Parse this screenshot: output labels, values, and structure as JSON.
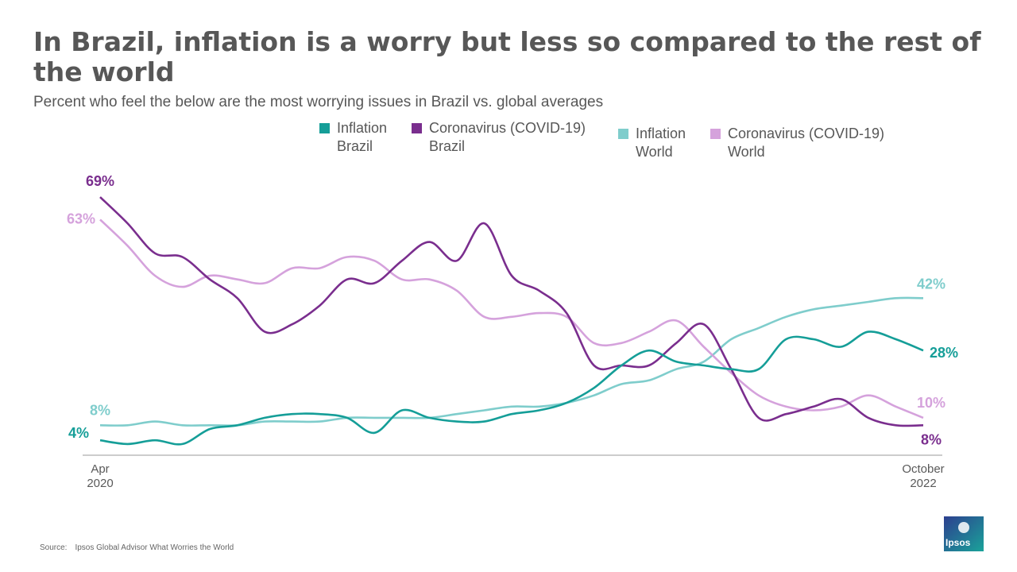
{
  "header": {
    "title": "In Brazil, inflation is a worry but less so compared to the rest of the world",
    "subtitle": "Percent who feel the below are the most worrying issues in Brazil vs. global averages"
  },
  "legend": [
    {
      "label": "Inflation\nBrazil",
      "color": "#159E98"
    },
    {
      "label": "Coronavirus (COVID-19)\nBrazil",
      "color": "#7A2E8E"
    },
    {
      "label": "Inflation\nWorld",
      "color": "#7FCDCC"
    },
    {
      "label": "Coronavirus (COVID-19)\nWorld",
      "color": "#D5A2DC"
    }
  ],
  "chart_data": {
    "type": "line",
    "title": "In Brazil, inflation is a worry but less so compared to the rest of the world",
    "subtitle": "Percent who feel the below are the most worrying issues in Brazil vs. global averages",
    "x_start_label": "Apr\n2020",
    "x_end_label": "October\n2022",
    "n_points": 31,
    "ylim": [
      0,
      72
    ],
    "grid": false,
    "series": [
      {
        "name": "Inflation Brazil",
        "color": "#159E98",
        "start_label": "4%",
        "end_label": "28%",
        "values": [
          4,
          3,
          4,
          3,
          7,
          8,
          10,
          11,
          11,
          10,
          6,
          12,
          10,
          9,
          9,
          11,
          12,
          14,
          18,
          24,
          28,
          25,
          24,
          23,
          23,
          31,
          31,
          29,
          33,
          31,
          28
        ]
      },
      {
        "name": "Coronavirus (COVID-19) Brazil",
        "color": "#7A2E8E",
        "start_label": "69%",
        "end_label": "8%",
        "values": [
          69,
          62,
          54,
          53,
          47,
          42,
          33,
          35,
          40,
          47,
          46,
          52,
          57,
          52,
          62,
          48,
          44,
          38,
          24,
          24,
          24,
          30,
          35,
          23,
          10,
          11,
          13,
          15,
          10,
          8,
          8
        ]
      },
      {
        "name": "Inflation World",
        "color": "#7FCDCC",
        "start_label": "8%",
        "end_label": "42%",
        "values": [
          8,
          8,
          9,
          8,
          8,
          8,
          9,
          9,
          9,
          10,
          10,
          10,
          10,
          11,
          12,
          13,
          13,
          14,
          16,
          19,
          20,
          23,
          25,
          31,
          34,
          37,
          39,
          40,
          41,
          42,
          42
        ]
      },
      {
        "name": "Coronavirus (COVID-19) World",
        "color": "#D5A2DC",
        "start_label": "63%",
        "end_label": "10%",
        "values": [
          63,
          56,
          48,
          45,
          48,
          47,
          46,
          50,
          50,
          53,
          52,
          47,
          47,
          44,
          37,
          37,
          38,
          37,
          30,
          30,
          33,
          36,
          29,
          22,
          16,
          13,
          12,
          13,
          16,
          13,
          10
        ]
      }
    ]
  },
  "source": {
    "label": "Source:",
    "text": "Ipsos Global Advisor What Worries the World"
  },
  "logo": {
    "text": "Ipsos"
  }
}
